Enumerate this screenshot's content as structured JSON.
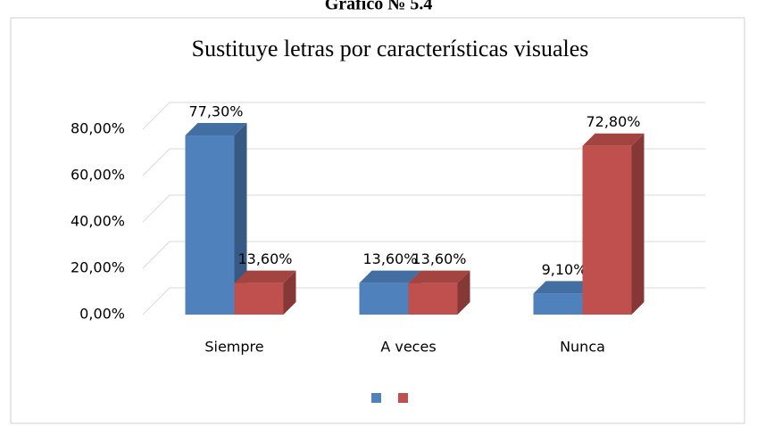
{
  "chart_data": {
    "type": "bar3d",
    "heading": "Gráfico № 5.4",
    "title": "Sustituye letras por características visuales",
    "categories": [
      "Siempre",
      "A veces",
      "Nunca"
    ],
    "series": [
      {
        "color": "#4f81bd",
        "values": [
          77.3,
          13.6,
          9.1
        ],
        "value_labels": [
          "77,30%",
          "13,60%",
          "9,10%"
        ]
      },
      {
        "color": "#c0504d",
        "values": [
          13.6,
          13.6,
          72.8
        ],
        "value_labels": [
          "13,60%",
          "13,60%",
          "72,80%"
        ]
      }
    ],
    "ylim": [
      0,
      80
    ],
    "yticks": [
      {
        "value": 0,
        "label": "0,00%"
      },
      {
        "value": 20,
        "label": "20,00%"
      },
      {
        "value": 40,
        "label": "40,00%"
      },
      {
        "value": 60,
        "label": "60,00%"
      },
      {
        "value": 80,
        "label": "80,00%"
      }
    ],
    "grid": true
  }
}
